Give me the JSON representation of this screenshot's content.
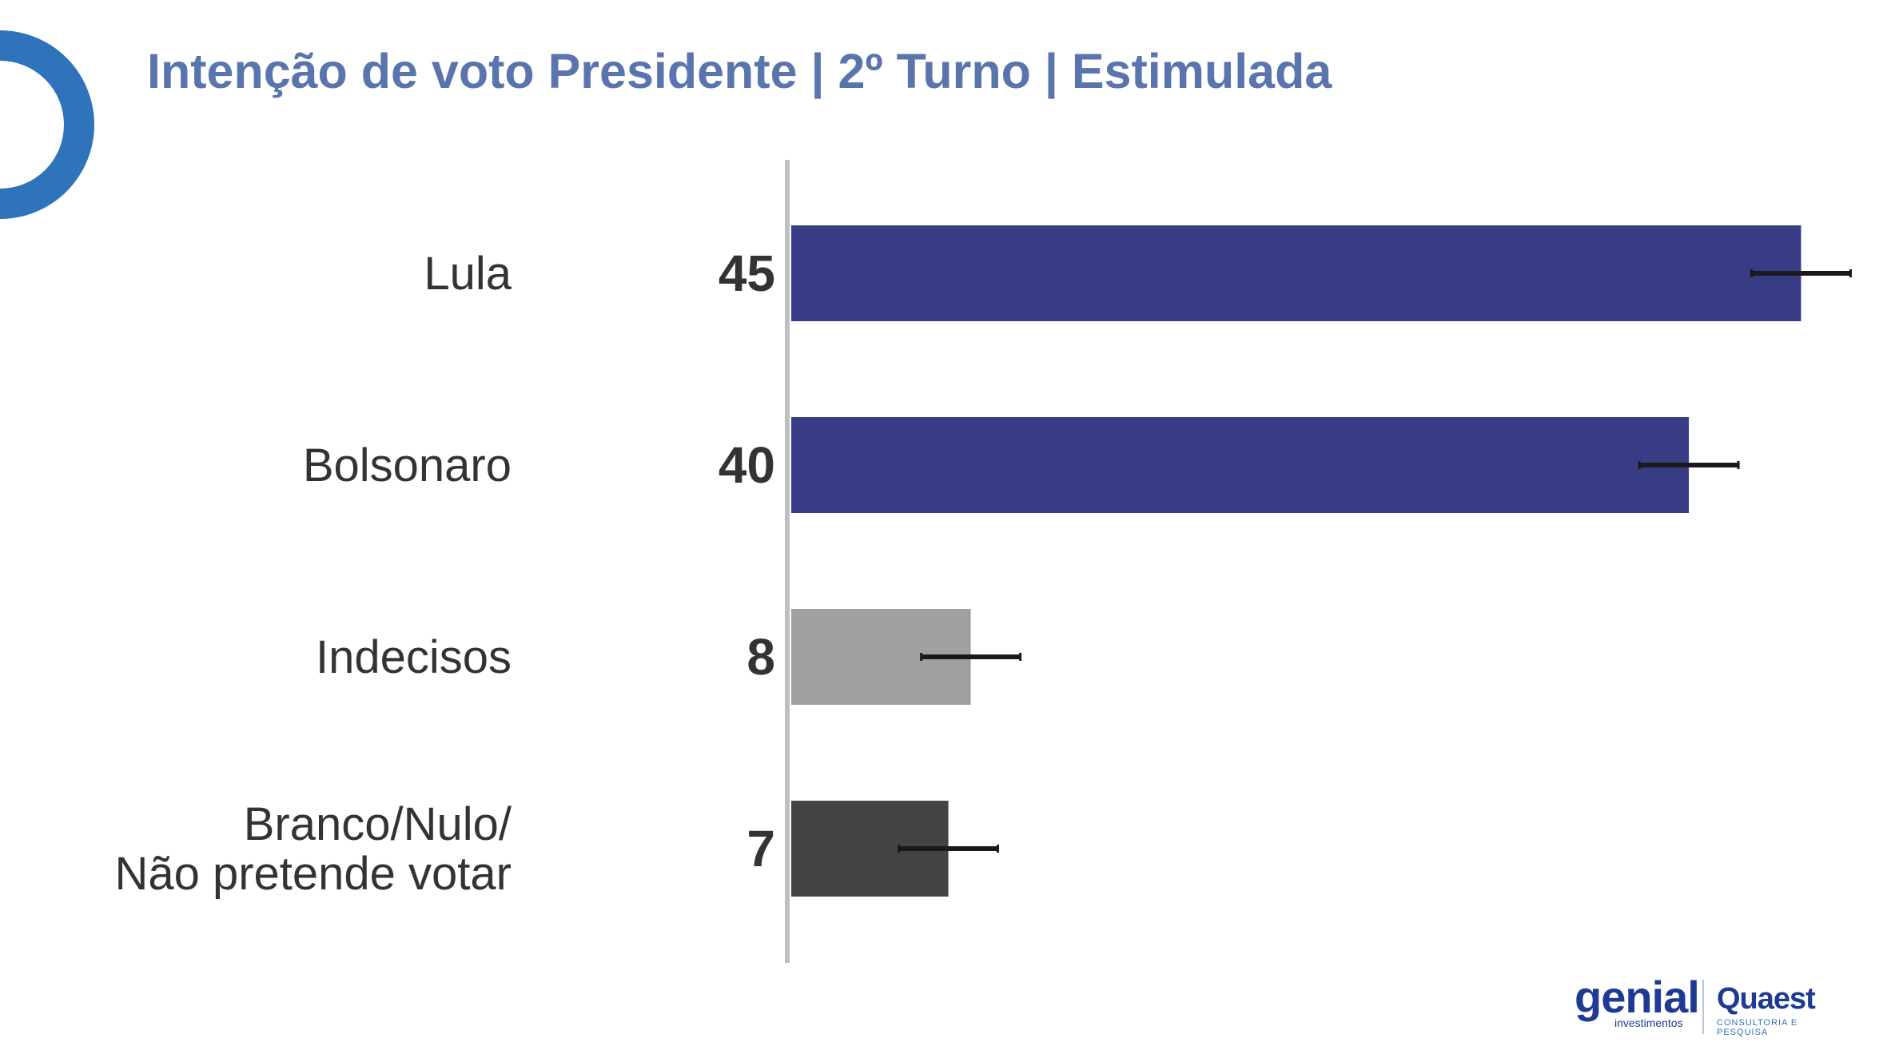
{
  "title": "Intenção de voto Presidente | 2º Turno | Estimulada",
  "chart_data": {
    "type": "bar",
    "orientation": "horizontal",
    "categories": [
      [
        "Lula"
      ],
      [
        "Bolsonaro"
      ],
      [
        "Indecisos"
      ],
      [
        "Branco/Nulo/",
        "Não pretende votar"
      ]
    ],
    "values": [
      45,
      40,
      8,
      7
    ],
    "colors": [
      "#373c85",
      "#373c85",
      "#a0a0a0",
      "#444444"
    ],
    "error_bars": true,
    "xlim": [
      0,
      52
    ]
  },
  "logos": {
    "genial": "genial",
    "genial_sub": "investimentos",
    "quaest": "Quaest",
    "quaest_sub": "CONSULTORIA E PESQUISA"
  }
}
